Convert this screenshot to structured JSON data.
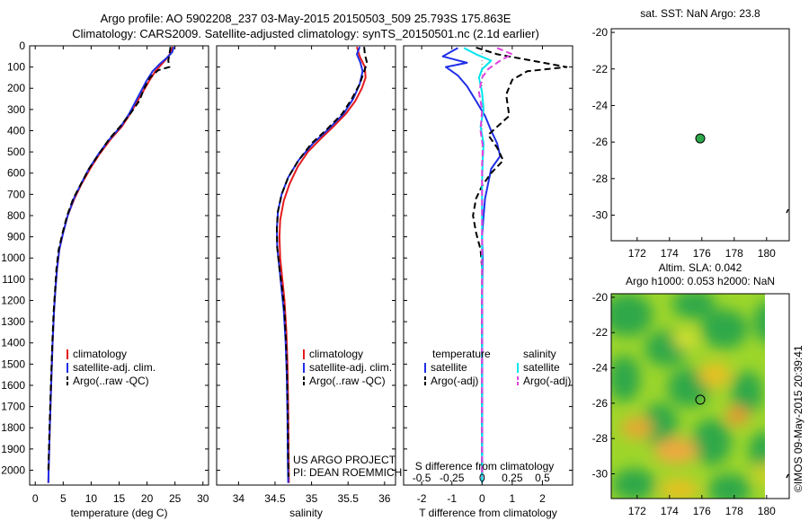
{
  "header": {
    "line1": "Argo profile: AO 5902208_237 03-May-2015 20150503_509 25.793S 175.863E",
    "line2": "Climatology: CARS2009. Satellite-adjusted climatology: synTS_20150501.nc (2.1d earlier)"
  },
  "colors": {
    "climatology": "#e41a1c",
    "satellite": "#1f2ee6",
    "argo": "#000000",
    "sal_satellite": "#00e5ee",
    "sal_argo": "#e040e0"
  },
  "credits": {
    "line1": "US ARGO PROJECT",
    "line2": "PI: DEAN ROEMMICH"
  },
  "stamp": "©IMOS 09-May-2015 20:39:41",
  "chart_data": [
    {
      "id": "temperature",
      "type": "line",
      "xlabel": "temperature (deg C)",
      "xlim": [
        -1,
        31
      ],
      "xticks": [
        0,
        5,
        10,
        15,
        20,
        25,
        30
      ],
      "ylim": [
        2070,
        0
      ],
      "yticks": [
        0,
        100,
        200,
        300,
        400,
        500,
        600,
        700,
        800,
        900,
        1000,
        1100,
        1200,
        1300,
        1400,
        1500,
        1600,
        1700,
        1800,
        1900,
        2000
      ],
      "legend": [
        "climatology",
        "satellite-adj. clim.",
        "Argo(..raw -QC)"
      ],
      "series": [
        {
          "name": "climatology",
          "style": "solid",
          "color": "#e41a1c",
          "points": [
            [
              24.6,
              5
            ],
            [
              24.3,
              30
            ],
            [
              23.5,
              60
            ],
            [
              22.5,
              90
            ],
            [
              21.5,
              120
            ],
            [
              20.5,
              160
            ],
            [
              19.4,
              210
            ],
            [
              18.3,
              260
            ],
            [
              17.0,
              320
            ],
            [
              15.5,
              380
            ],
            [
              13.5,
              440
            ],
            [
              11.5,
              510
            ],
            [
              9.8,
              580
            ],
            [
              8.3,
              650
            ],
            [
              7.0,
              720
            ],
            [
              5.8,
              800
            ],
            [
              5.0,
              880
            ],
            [
              4.3,
              960
            ],
            [
              3.9,
              1050
            ],
            [
              3.6,
              1150
            ],
            [
              3.35,
              1250
            ],
            [
              3.1,
              1400
            ],
            [
              2.85,
              1600
            ],
            [
              2.6,
              1800
            ],
            [
              2.4,
              2000
            ],
            [
              2.35,
              2060
            ]
          ]
        },
        {
          "name": "satellite-adj. clim.",
          "style": "solid",
          "color": "#1f2ee6",
          "points": [
            [
              24.8,
              5
            ],
            [
              24.5,
              30
            ],
            [
              23.6,
              55
            ],
            [
              22.3,
              85
            ],
            [
              21.0,
              120
            ],
            [
              19.9,
              165
            ],
            [
              19.0,
              210
            ],
            [
              18.0,
              260
            ],
            [
              16.8,
              320
            ],
            [
              15.3,
              380
            ],
            [
              13.3,
              440
            ],
            [
              11.3,
              510
            ],
            [
              9.6,
              580
            ],
            [
              8.2,
              650
            ],
            [
              6.9,
              720
            ],
            [
              5.8,
              800
            ],
            [
              5.0,
              880
            ],
            [
              4.3,
              960
            ],
            [
              3.9,
              1050
            ],
            [
              3.6,
              1150
            ],
            [
              3.35,
              1250
            ],
            [
              3.1,
              1400
            ],
            [
              2.85,
              1600
            ],
            [
              2.6,
              1800
            ],
            [
              2.4,
              2000
            ],
            [
              2.35,
              2060
            ]
          ]
        },
        {
          "name": "Argo(..raw -QC)",
          "style": "dashed",
          "color": "#000000",
          "points": [
            [
              24.2,
              5
            ],
            [
              24.0,
              40
            ],
            [
              23.8,
              70
            ],
            [
              24.0,
              100
            ],
            [
              22.0,
              115
            ],
            [
              20.5,
              150
            ],
            [
              19.5,
              200
            ],
            [
              18.6,
              260
            ],
            [
              17.0,
              320
            ],
            [
              15.2,
              380
            ],
            [
              13.2,
              440
            ],
            [
              11.4,
              510
            ],
            [
              9.6,
              580
            ],
            [
              8.2,
              650
            ],
            [
              6.8,
              720
            ],
            [
              5.7,
              800
            ],
            [
              4.9,
              880
            ],
            [
              4.2,
              960
            ],
            [
              3.8,
              1050
            ],
            [
              3.55,
              1150
            ],
            [
              3.3,
              1250
            ],
            [
              3.05,
              1400
            ],
            [
              2.8,
              1600
            ],
            [
              2.55,
              1800
            ],
            [
              2.35,
              2000
            ]
          ]
        }
      ]
    },
    {
      "id": "salinity",
      "type": "line",
      "xlabel": "salinity",
      "xlim": [
        33.7,
        36.15
      ],
      "xticks": [
        34,
        34.5,
        35,
        35.5,
        36
      ],
      "ylim": [
        2070,
        0
      ],
      "legend": [
        "climatology",
        "satellite-adj. clim.",
        "Argo(..raw -QC)"
      ],
      "series": [
        {
          "name": "climatology",
          "style": "solid",
          "color": "#e41a1c",
          "points": [
            [
              35.62,
              5
            ],
            [
              35.66,
              50
            ],
            [
              35.73,
              100
            ],
            [
              35.74,
              150
            ],
            [
              35.69,
              200
            ],
            [
              35.6,
              260
            ],
            [
              35.47,
              320
            ],
            [
              35.3,
              380
            ],
            [
              35.12,
              440
            ],
            [
              34.95,
              500
            ],
            [
              34.81,
              570
            ],
            [
              34.7,
              650
            ],
            [
              34.62,
              730
            ],
            [
              34.57,
              820
            ],
            [
              34.56,
              900
            ],
            [
              34.57,
              1000
            ],
            [
              34.6,
              1100
            ],
            [
              34.63,
              1200
            ],
            [
              34.655,
              1350
            ],
            [
              34.67,
              1500
            ],
            [
              34.68,
              1700
            ],
            [
              34.685,
              1900
            ],
            [
              34.69,
              2060
            ]
          ]
        },
        {
          "name": "satellite-adj. clim.",
          "style": "solid",
          "color": "#1f2ee6",
          "points": [
            [
              35.66,
              5
            ],
            [
              35.62,
              40
            ],
            [
              35.67,
              80
            ],
            [
              35.7,
              120
            ],
            [
              35.66,
              180
            ],
            [
              35.57,
              250
            ],
            [
              35.44,
              320
            ],
            [
              35.24,
              390
            ],
            [
              35.02,
              460
            ],
            [
              34.82,
              540
            ],
            [
              34.68,
              620
            ],
            [
              34.59,
              700
            ],
            [
              34.54,
              780
            ],
            [
              34.525,
              860
            ],
            [
              34.53,
              950
            ],
            [
              34.56,
              1050
            ],
            [
              34.59,
              1150
            ],
            [
              34.62,
              1250
            ],
            [
              34.645,
              1400
            ],
            [
              34.66,
              1550
            ],
            [
              34.67,
              1750
            ],
            [
              34.675,
              1950
            ],
            [
              34.68,
              2060
            ]
          ]
        },
        {
          "name": "Argo(..raw -QC)",
          "style": "dashed",
          "color": "#000000",
          "points": [
            [
              35.72,
              5
            ],
            [
              35.73,
              40
            ],
            [
              35.76,
              80
            ],
            [
              35.72,
              120
            ],
            [
              35.66,
              180
            ],
            [
              35.55,
              250
            ],
            [
              35.42,
              320
            ],
            [
              35.22,
              390
            ],
            [
              35.0,
              460
            ],
            [
              34.82,
              540
            ],
            [
              34.68,
              620
            ],
            [
              34.59,
              700
            ],
            [
              34.54,
              780
            ],
            [
              34.525,
              860
            ],
            [
              34.53,
              950
            ],
            [
              34.56,
              1050
            ],
            [
              34.6,
              1150
            ],
            [
              34.63,
              1250
            ],
            [
              34.65,
              1400
            ],
            [
              34.665,
              1550
            ],
            [
              34.675,
              1750
            ],
            [
              34.68,
              1950
            ],
            [
              34.685,
              2030
            ]
          ]
        }
      ]
    },
    {
      "id": "difference",
      "type": "line",
      "xlabel": "T difference from climatology",
      "xlabel_top": "S difference from climatology",
      "xlim": [
        -2.6,
        3.0
      ],
      "xticks": [
        -2,
        -1,
        0,
        1,
        2
      ],
      "xticks_top": [
        {
          "label": "-0.5",
          "t": -2
        },
        {
          "label": "-0.25",
          "t": -1
        },
        {
          "label": "0",
          "t": 0
        },
        {
          "label": "0.25",
          "t": 1
        },
        {
          "label": "0.5",
          "t": 2
        }
      ],
      "ylim": [
        2070,
        0
      ],
      "legend_titles": [
        "temperature",
        "salinity"
      ],
      "legend_left": [
        "satellite",
        "Argo(-adj)"
      ],
      "legend_right": [
        "satellite",
        "Argo(-adj)"
      ],
      "series": [
        {
          "name": "T satellite",
          "style": "solid",
          "color": "#1f2ee6",
          "points": [
            [
              -0.8,
              10
            ],
            [
              -1.3,
              50
            ],
            [
              -0.5,
              80
            ],
            [
              -1.2,
              100
            ],
            [
              -0.8,
              140
            ],
            [
              -0.5,
              190
            ],
            [
              -0.2,
              260
            ],
            [
              0.1,
              330
            ],
            [
              0.3,
              400
            ],
            [
              0.5,
              460
            ],
            [
              0.6,
              520
            ],
            [
              0.3,
              580
            ],
            [
              0.2,
              650
            ],
            [
              0.1,
              720
            ],
            [
              0.05,
              800
            ],
            [
              0.0,
              900
            ],
            [
              0.02,
              1000
            ],
            [
              0.0,
              1200
            ],
            [
              0.0,
              1500
            ],
            [
              0.0,
              1800
            ],
            [
              0.0,
              2060
            ]
          ]
        },
        {
          "name": "T Argo(-adj)",
          "style": "dashed",
          "color": "#000000",
          "points": [
            [
              -0.2,
              8
            ],
            [
              0.5,
              40
            ],
            [
              2.8,
              100
            ],
            [
              1.5,
              120
            ],
            [
              1.0,
              160
            ],
            [
              0.8,
              230
            ],
            [
              0.9,
              330
            ],
            [
              0.2,
              420
            ],
            [
              0.5,
              480
            ],
            [
              0.7,
              540
            ],
            [
              0.3,
              600
            ],
            [
              0.0,
              660
            ],
            [
              -0.2,
              720
            ],
            [
              -0.3,
              800
            ],
            [
              -0.2,
              880
            ],
            [
              -0.05,
              960
            ],
            [
              0.0,
              1050
            ],
            [
              0.0,
              1300
            ],
            [
              0.0,
              1600
            ],
            [
              0.0,
              1900
            ],
            [
              0.0,
              2030
            ]
          ]
        },
        {
          "name": "S satellite",
          "style": "solid",
          "color": "#00e5ee",
          "points": [
            [
              -0.6,
              10
            ],
            [
              -0.2,
              40
            ],
            [
              0.3,
              70
            ],
            [
              0.0,
              110
            ],
            [
              -0.1,
              150
            ],
            [
              0.0,
              220
            ],
            [
              0.05,
              300
            ],
            [
              -0.05,
              380
            ],
            [
              0.05,
              460
            ],
            [
              0.02,
              540
            ],
            [
              0.0,
              640
            ],
            [
              0.0,
              800
            ],
            [
              0.0,
              1000
            ],
            [
              0.0,
              1300
            ],
            [
              0.0,
              1600
            ],
            [
              0.0,
              1900
            ],
            [
              0.0,
              2060
            ]
          ]
        },
        {
          "name": "S Argo(-adj)",
          "style": "dashed",
          "color": "#e040e0",
          "points": [
            [
              0.5,
              10
            ],
            [
              1.0,
              40
            ],
            [
              0.6,
              70
            ],
            [
              0.2,
              110
            ],
            [
              0.0,
              150
            ],
            [
              -0.1,
              220
            ],
            [
              0.0,
              300
            ],
            [
              -0.05,
              400
            ],
            [
              0.03,
              480
            ],
            [
              0.0,
              560
            ],
            [
              0.0,
              700
            ],
            [
              0.0,
              900
            ],
            [
              0.0,
              1200
            ],
            [
              0.0,
              1500
            ],
            [
              0.0,
              1800
            ],
            [
              0.0,
              2030
            ]
          ]
        }
      ]
    },
    {
      "id": "sst-map",
      "type": "scatter",
      "title": "sat. SST: NaN Argo: 23.8",
      "xlim": [
        170.4,
        181.4
      ],
      "ylim": [
        -31.4,
        -19.8
      ],
      "xticks": [
        172,
        174,
        176,
        178,
        180
      ],
      "yticks": [
        -20,
        -22,
        -24,
        -26,
        -28,
        -30
      ],
      "points": [
        [
          175.9,
          -25.8
        ]
      ]
    },
    {
      "id": "sla-map",
      "type": "heatmap",
      "title_line1": "Altim. SLA: 0.042",
      "title_line2": "Argo h1000: 0.053 h2000: NaN",
      "xlim": [
        170.4,
        181.4
      ],
      "ylim": [
        -31.4,
        -19.8
      ],
      "xticks": [
        172,
        174,
        176,
        178,
        180
      ],
      "yticks": [
        -20,
        -22,
        -24,
        -26,
        -28,
        -30
      ],
      "points": [
        [
          175.9,
          -25.8
        ]
      ]
    }
  ]
}
